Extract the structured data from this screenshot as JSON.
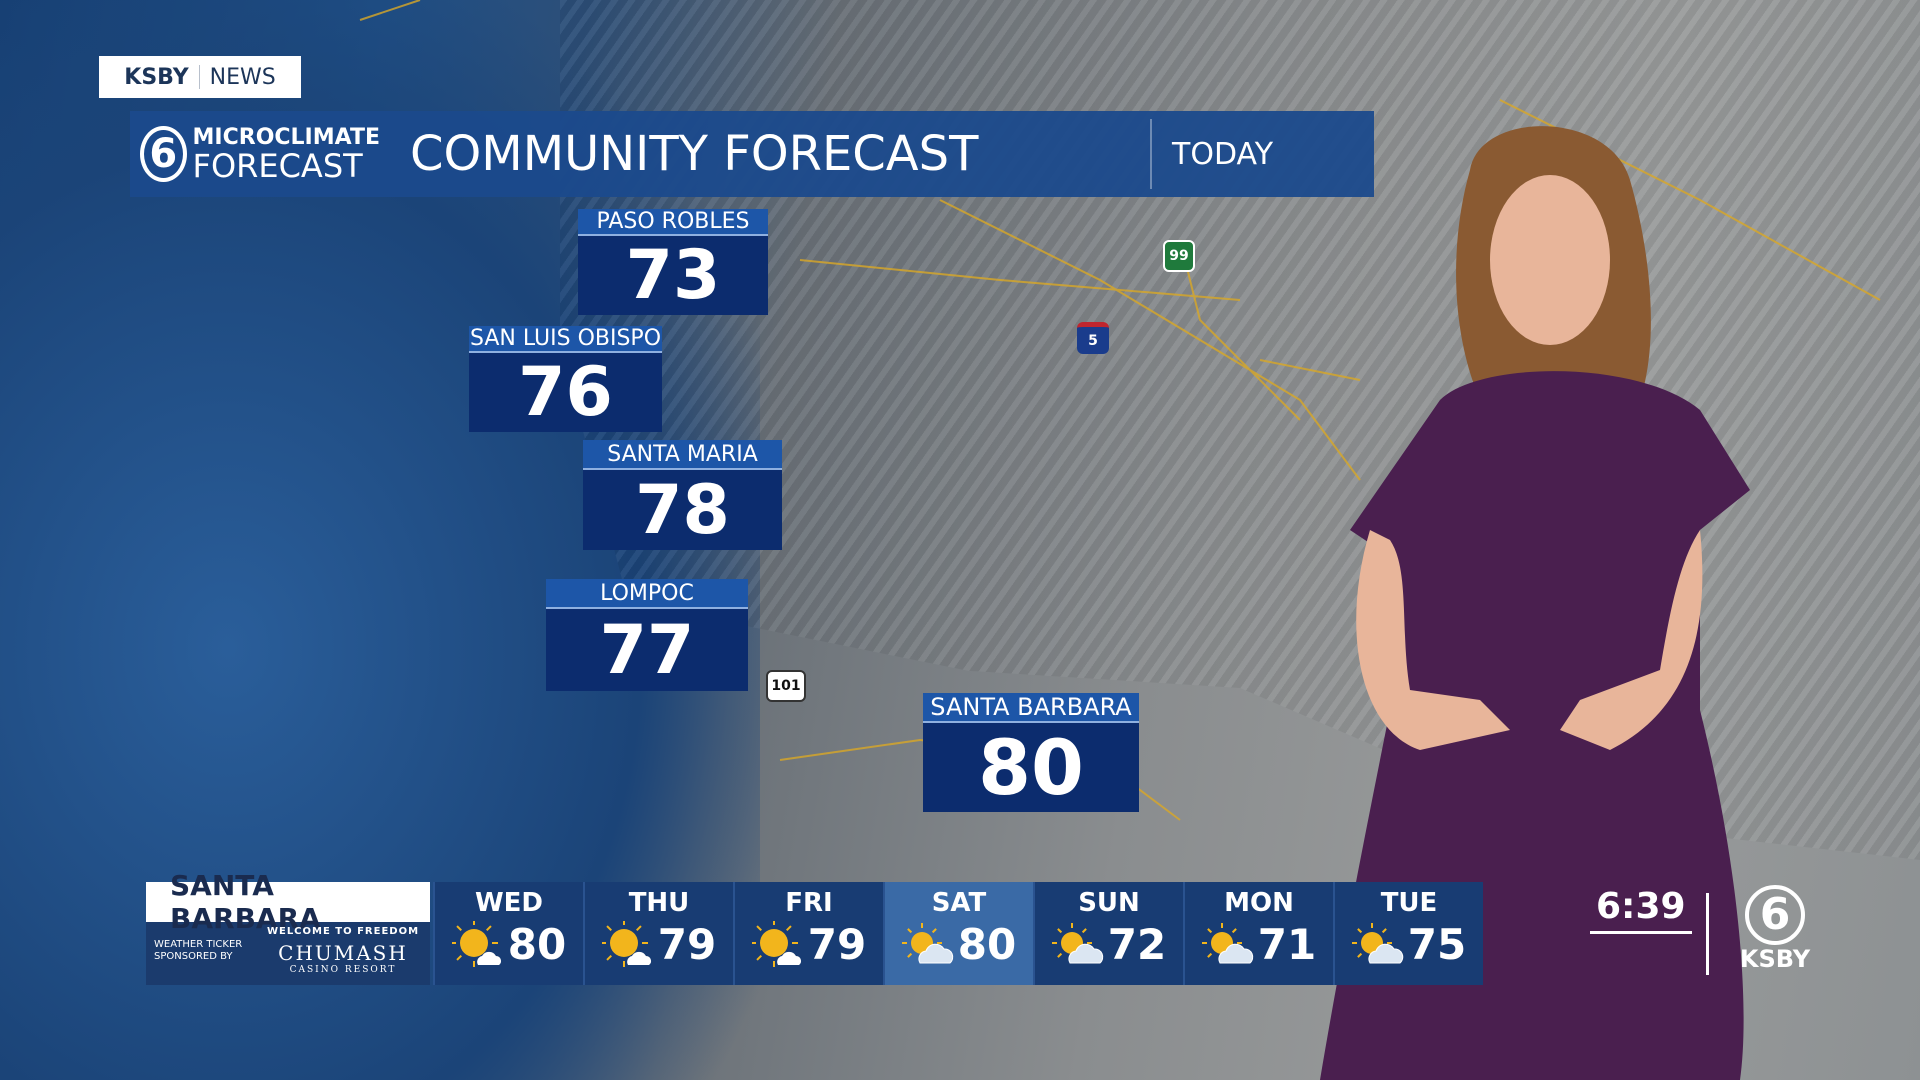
{
  "tag": {
    "station": "KSBY",
    "section": "NEWS"
  },
  "header": {
    "brand_line1": "MICROCLIMATE",
    "brand_line2": "FORECAST",
    "title": "COMMUNITY FORECAST",
    "period": "TODAY"
  },
  "cities": [
    {
      "name": "PASO ROBLES",
      "temp": "73"
    },
    {
      "name": "SAN LUIS OBISPO",
      "temp": "76"
    },
    {
      "name": "SANTA MARIA",
      "temp": "78"
    },
    {
      "name": "LOMPOC",
      "temp": "77"
    },
    {
      "name": "SANTA BARBARA",
      "temp": "80"
    }
  ],
  "highways": [
    {
      "label": "99",
      "color": "#1f7a3c"
    },
    {
      "label": "5",
      "color": "#1a3c8c"
    },
    {
      "label": "101",
      "color": "#ffffff"
    }
  ],
  "ticker": {
    "location": "SANTA BARBARA",
    "sponsor_text": "WEATHER TICKER SPONSORED BY",
    "sponsor_tagline": "WELCOME TO FREEDOM",
    "sponsor_name": "CHUMASH",
    "sponsor_sub": "CASINO RESORT",
    "days": [
      {
        "day": "WED",
        "high": "80",
        "icon": "mostly-sunny-icon"
      },
      {
        "day": "THU",
        "high": "79",
        "icon": "mostly-sunny-icon"
      },
      {
        "day": "FRI",
        "high": "79",
        "icon": "mostly-sunny-icon"
      },
      {
        "day": "SAT",
        "high": "80",
        "icon": "partly-cloudy-icon"
      },
      {
        "day": "SUN",
        "high": "72",
        "icon": "partly-cloudy-icon"
      },
      {
        "day": "MON",
        "high": "71",
        "icon": "partly-cloudy-icon"
      },
      {
        "day": "TUE",
        "high": "75",
        "icon": "partly-cloudy-icon"
      }
    ]
  },
  "clock": "6:39",
  "logo": {
    "channel": "6",
    "call_sign": "KSBY"
  },
  "colors": {
    "header_blue": "#1b4a8c",
    "temp_box": "#0c2c6e",
    "label_blue": "#1d56a8",
    "dress": "#4a1f4f"
  }
}
